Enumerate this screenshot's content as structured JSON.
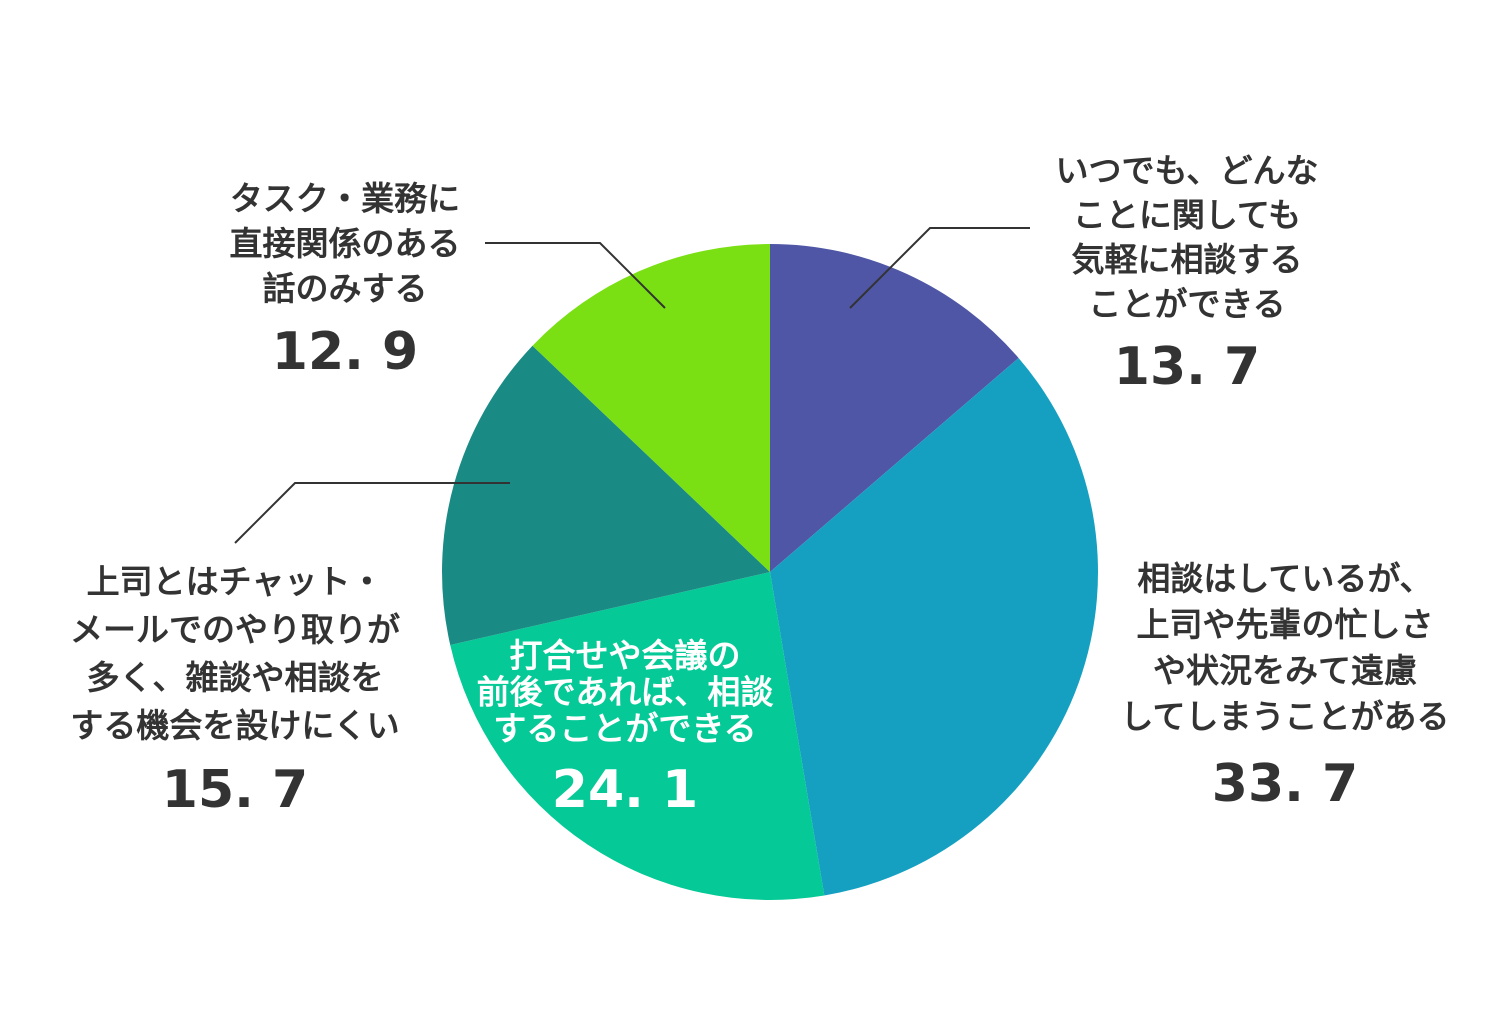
{
  "chart_data": {
    "type": "pie",
    "categories": [
      "いつでも、どんな\nことに関しても\n気軽に相談する\nことができる",
      "相談はしているが、\n上司や先輩の忙しさ\nや状況をみて遠慮\nしてしまうことがある",
      "打合せや会議の\n前後であれば、相談\nすることができる",
      "上司とはチャット・\nメールでのやり取りが\n多く、雑談や相談を\nする機会を設けにくい",
      "タスク・業務に\n直接関係のある\n話のみする"
    ],
    "values": [
      13.7,
      33.7,
      24.1,
      15.7,
      12.9
    ],
    "value_labels": [
      "13. 7",
      "33. 7",
      "24. 1",
      "15. 7",
      "12. 9"
    ],
    "colors": [
      "#4f56a6",
      "#15a0c2",
      "#05c996",
      "#1a8a84",
      "#7ae014"
    ]
  }
}
